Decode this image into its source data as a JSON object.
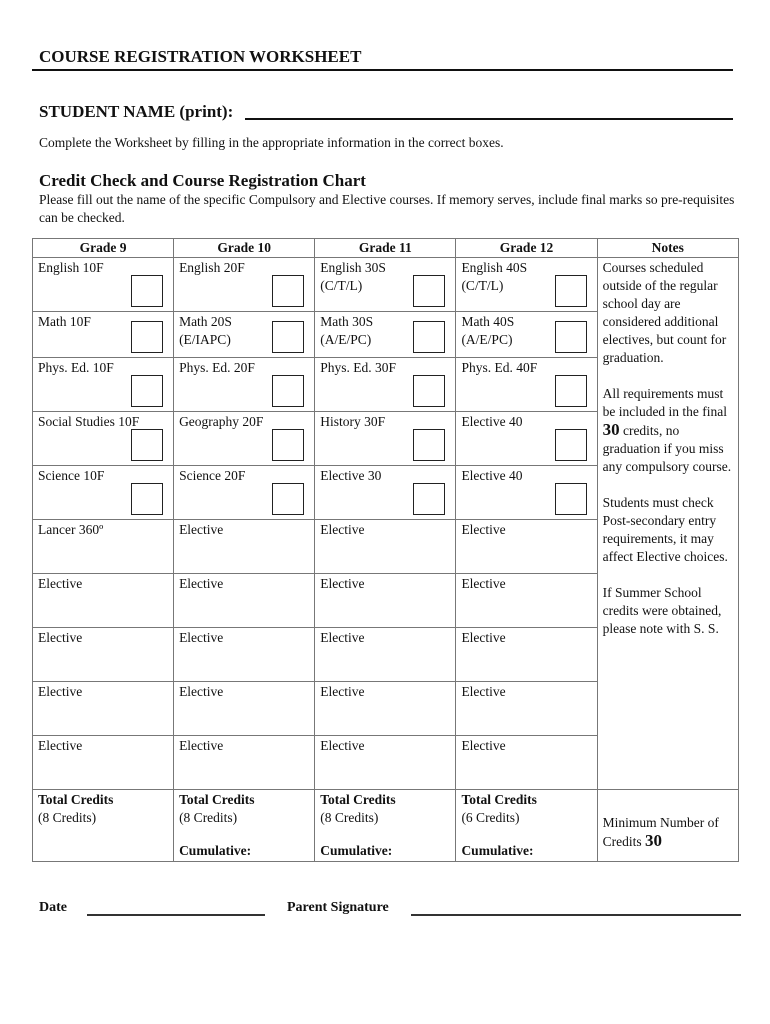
{
  "title": "COURSE REGISTRATION WORKSHEET",
  "student_name_label": "STUDENT NAME (print):",
  "instruction": "Complete the Worksheet by filling in the appropriate information in the correct boxes.",
  "section_heading": "Credit Check and Course Registration Chart",
  "section_text": "Please fill out the name of the specific Compulsory and Elective courses.  If memory serves, include final marks so pre-requisites can be checked.",
  "headers": [
    "Grade 9",
    "Grade 10",
    "Grade 11",
    "Grade 12",
    "Notes"
  ],
  "rows": [
    [
      {
        "l1": "English 10F",
        "box": true
      },
      {
        "l1": "English 20F",
        "box": true
      },
      {
        "l1": "English 30S",
        "l2": "(C/T/L)",
        "box": true
      },
      {
        "l1": "English 40S",
        "l2": "(C/T/L)",
        "box": true
      }
    ],
    [
      {
        "l1": "Math 10F",
        "box": true
      },
      {
        "l1": "Math 20S",
        "l2": "(E/IAPC)",
        "box": true
      },
      {
        "l1": "Math 30S",
        "l2": "(A/E/PC)",
        "box": true
      },
      {
        "l1": "Math 40S",
        "l2": "(A/E/PC)",
        "box": true
      }
    ],
    [
      {
        "l1": "Phys. Ed. 10F",
        "box": true
      },
      {
        "l1": "Phys. Ed. 20F",
        "box": true
      },
      {
        "l1": "Phys. Ed. 30F",
        "box": true
      },
      {
        "l1": "Phys. Ed. 40F",
        "box": true
      }
    ],
    [
      {
        "l1": "Social Studies 10F",
        "box": true
      },
      {
        "l1": "Geography 20F",
        "box": true
      },
      {
        "l1": "History 30F",
        "box": true
      },
      {
        "l1": "Elective 40",
        "box": true
      }
    ],
    [
      {
        "l1": "Science 10F",
        "box": true
      },
      {
        "l1": "Science 20F",
        "box": true
      },
      {
        "l1": "Elective 30",
        "box": true
      },
      {
        "l1": "Elective 40",
        "box": true
      }
    ],
    [
      {
        "l1": "Lancer 360º"
      },
      {
        "l1": "Elective"
      },
      {
        "l1": "Elective"
      },
      {
        "l1": "Elective"
      }
    ],
    [
      {
        "l1": "Elective"
      },
      {
        "l1": "Elective"
      },
      {
        "l1": "Elective"
      },
      {
        "l1": "Elective"
      }
    ],
    [
      {
        "l1": "Elective"
      },
      {
        "l1": "Elective"
      },
      {
        "l1": "Elective"
      },
      {
        "l1": "Elective"
      }
    ],
    [
      {
        "l1": "Elective"
      },
      {
        "l1": "Elective"
      },
      {
        "l1": "Elective"
      },
      {
        "l1": "Elective"
      }
    ],
    [
      {
        "l1": "Elective"
      },
      {
        "l1": "Elective"
      },
      {
        "l1": "Elective"
      },
      {
        "l1": "Elective"
      }
    ]
  ],
  "notes": {
    "n1": "Courses scheduled outside of the regular school day are considered additional electives, but count for graduation.",
    "n2_a": "All requirements must be included in the final ",
    "n2_num": "30",
    "n2_b": " credits, no graduation if you miss any compulsory course.",
    "n3": "Students must check Post-secondary entry requirements, it may affect Elective choices.",
    "n4": "If Summer School credits were obtained, please note with S. S."
  },
  "totals": [
    {
      "label": "Total Credits",
      "credits": "(8 Credits)"
    },
    {
      "label": "Total Credits",
      "credits": "(8 Credits)",
      "cumulative": "Cumulative:"
    },
    {
      "label": "Total Credits",
      "credits": "(8 Credits)",
      "cumulative": "Cumulative:"
    },
    {
      "label": "Total Credits",
      "credits": "(6 Credits)",
      "cumulative": "Cumulative:"
    }
  ],
  "minimum": {
    "label": "Minimum Number of Credits ",
    "value": "30"
  },
  "footer": {
    "date_label": "Date",
    "signature_label": "Parent Signature"
  }
}
